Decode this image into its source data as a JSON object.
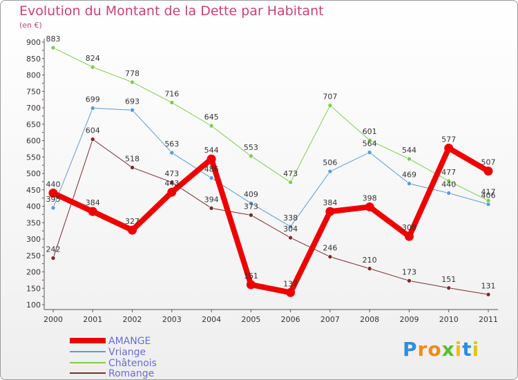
{
  "title": "Evolution du Montant de la Dette par Habitant",
  "unit_label": "(en €)",
  "brand": {
    "text": "Proxiti",
    "letters": [
      "P",
      "r",
      "o",
      "x",
      "i",
      "t",
      "i"
    ],
    "colors": [
      "#2a8ee0",
      "#f08a1c",
      "#f08a1c",
      "#5abf2c",
      "#e8c11a",
      "#2a8ee0",
      "#e8c11a"
    ]
  },
  "chart_data": {
    "type": "line",
    "title": "Evolution du Montant de la Dette par Habitant",
    "ylabel": "(en €)",
    "x": [
      "2000",
      "2001",
      "2002",
      "2003",
      "2004",
      "2005",
      "2006",
      "2007",
      "2008",
      "2009",
      "2010",
      "2011"
    ],
    "ylim": [
      100,
      900
    ],
    "yticks": [
      100,
      150,
      200,
      250,
      300,
      350,
      400,
      450,
      500,
      550,
      600,
      650,
      700,
      750,
      800,
      850,
      900
    ],
    "grid": false,
    "legend_position": "bottom-left",
    "series": [
      {
        "name": "AMANGE",
        "color": "#ee0000",
        "width": 8,
        "values": [
          440,
          384,
          327,
          443,
          544,
          161,
          137,
          384,
          398,
          308,
          577,
          507
        ],
        "labels": [
          "440",
          "384",
          "327",
          "443",
          "544",
          "161",
          "137",
          "384",
          "398",
          "308",
          "577",
          "507"
        ]
      },
      {
        "name": "Vriange",
        "color": "#5b9bd5",
        "width": 1,
        "values": [
          395,
          699,
          693,
          563,
          486,
          409,
          338,
          506,
          564,
          469,
          440,
          406
        ],
        "labels": [
          "395",
          "699",
          "693",
          "563",
          "486",
          "409",
          "338",
          "506",
          "564",
          "469",
          "440",
          "406"
        ]
      },
      {
        "name": "Châtenois",
        "color": "#7ccd4e",
        "width": 1,
        "values": [
          883,
          824,
          778,
          716,
          645,
          553,
          473,
          707,
          601,
          544,
          477,
          417
        ],
        "labels": [
          "883",
          "824",
          "778",
          "716",
          "645",
          "553",
          "473",
          "707",
          "601",
          "544",
          "477",
          "417"
        ]
      },
      {
        "name": "Romange",
        "color": "#7b2a2a",
        "width": 1,
        "values": [
          242,
          604,
          518,
          473,
          394,
          373,
          304,
          246,
          210,
          173,
          151,
          131
        ],
        "labels": [
          "242",
          "604",
          "518",
          "473",
          "394",
          "373",
          "304",
          "246",
          "210",
          "173",
          "151",
          "131"
        ]
      }
    ]
  }
}
